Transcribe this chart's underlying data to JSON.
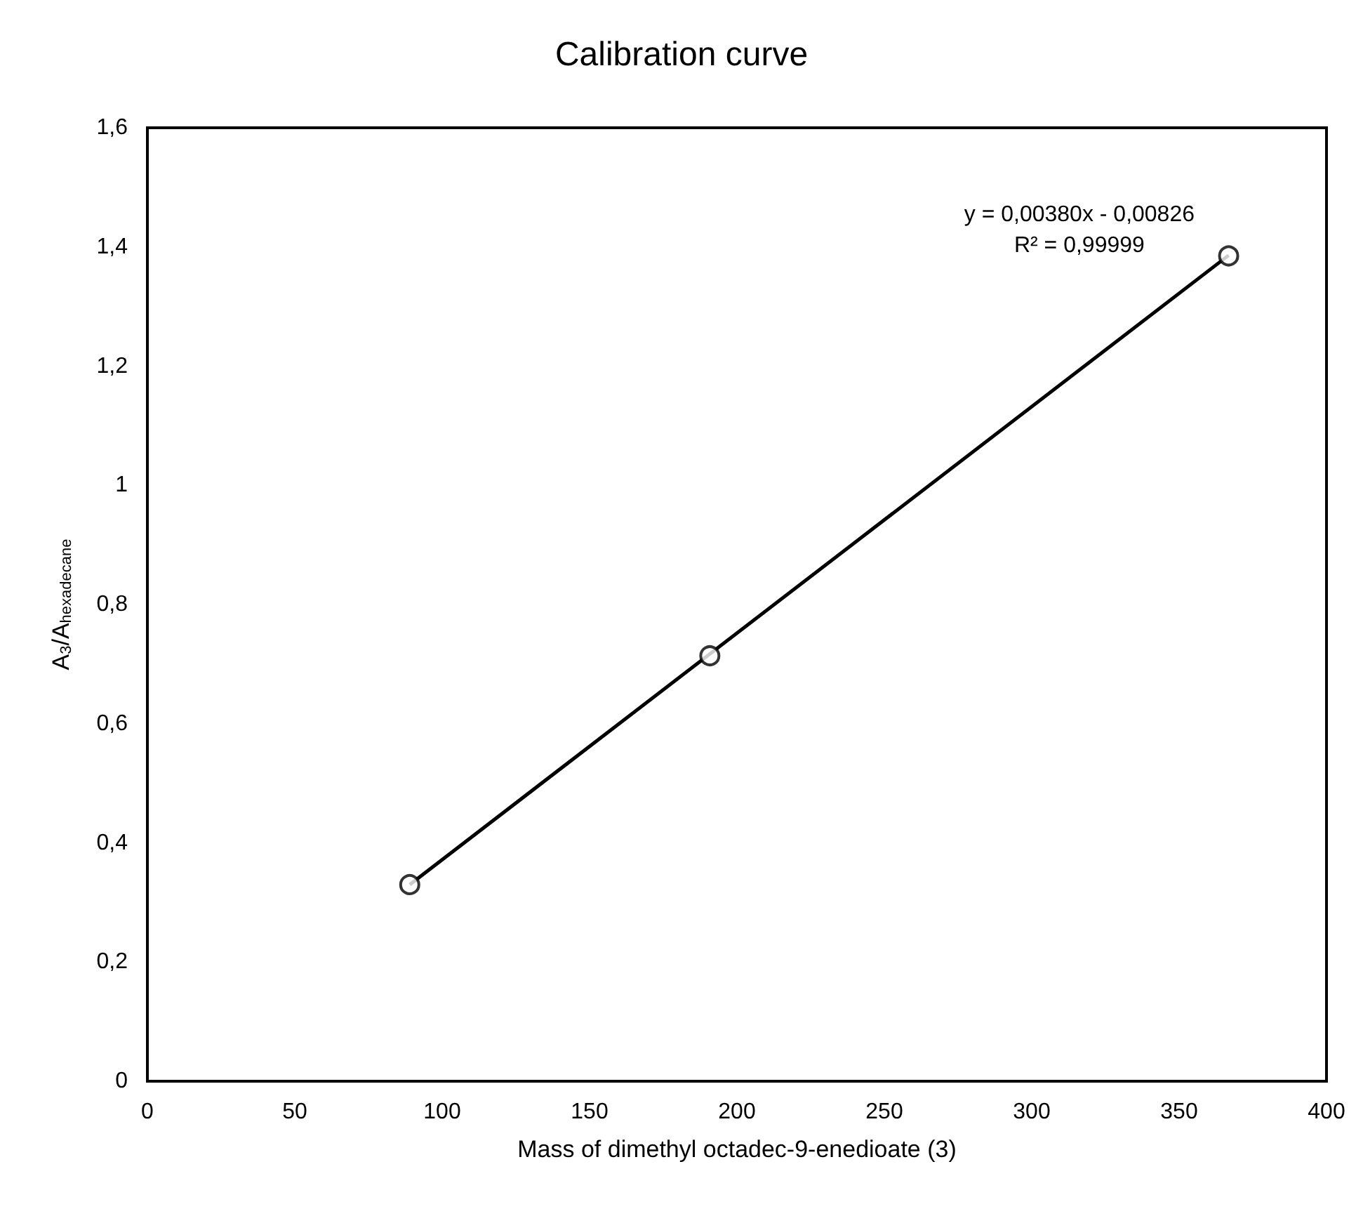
{
  "chart_data": {
    "type": "scatter",
    "title": "Calibration curve",
    "xlabel": "Mass of dimethyl octadec-9-enedioate (3)",
    "ylabel": "A$_{3}$/A$_{hexadecane}$",
    "annotations": [
      "y = 0,00380x - 0,00826",
      "R² = 0,99999"
    ],
    "grid": false,
    "xlim": [
      0,
      400
    ],
    "xticks": [
      0,
      50,
      100,
      150,
      200,
      250,
      300,
      350,
      400
    ],
    "ylim": [
      0,
      1.6
    ],
    "yticks": [
      0,
      {
        "value": 0.2,
        "label": "0,2"
      },
      {
        "value": 0.4,
        "label": "0,4"
      },
      {
        "value": 0.6,
        "label": "0,6"
      },
      {
        "value": 0.8,
        "label": "0,8"
      },
      1,
      {
        "value": 1.2,
        "label": "1,2"
      },
      {
        "value": 1.4,
        "label": "1,4"
      },
      {
        "value": 1.6,
        "label": "1,6"
      }
    ],
    "series": [
      {
        "color": "#000000",
        "marker": "circle",
        "x": [
          89,
          190.8,
          366.8
        ],
        "values": [
          0.33,
          0.714,
          1.385
        ]
      },
      {
        "type": "line",
        "color": "#000000",
        "x": [
          89,
          366.8
        ],
        "values": [
          0.33,
          1.386
        ]
      }
    ]
  }
}
